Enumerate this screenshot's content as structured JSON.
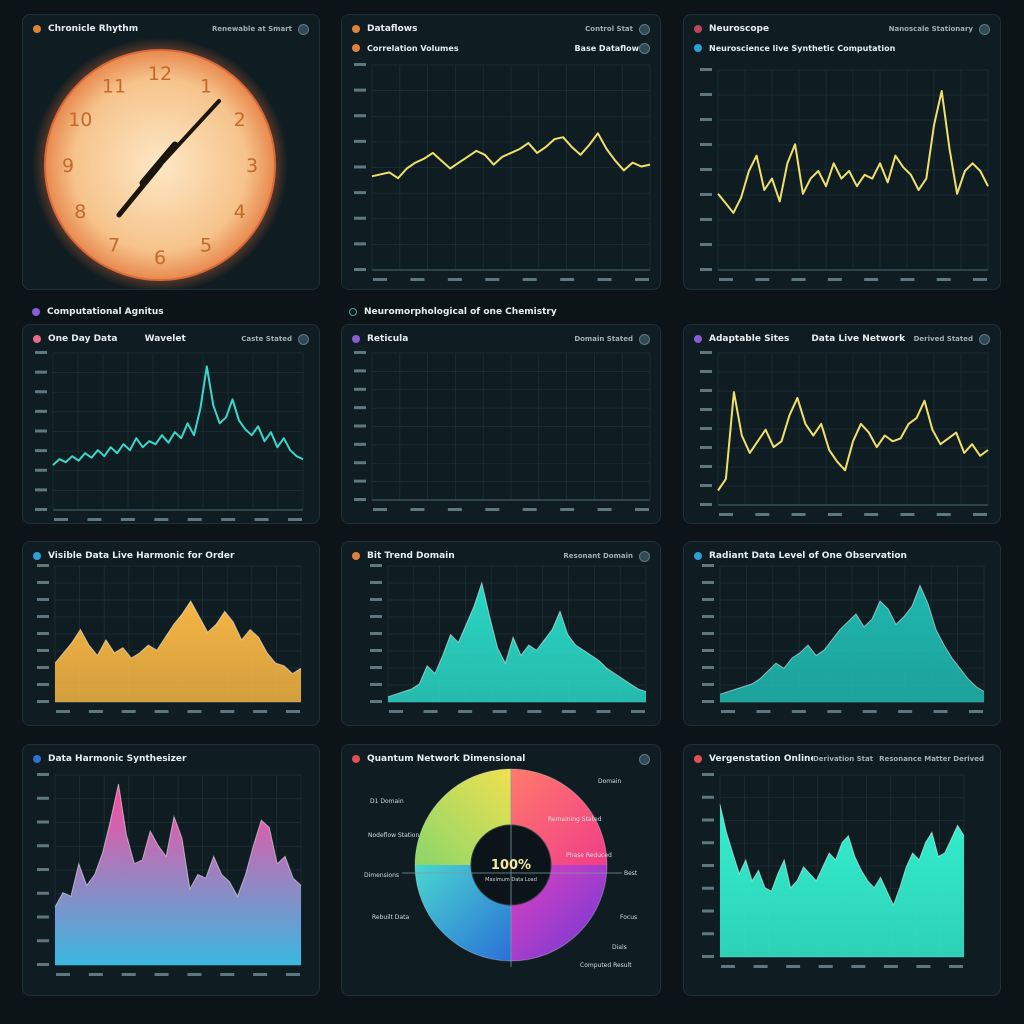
{
  "panels": {
    "clock": {
      "title": "Chronicle Rhythm",
      "meta": "Renewable at Smart",
      "dot": "#e0813a",
      "numerals": [
        "12",
        "1",
        "2",
        "3",
        "4",
        "5",
        "6",
        "7",
        "8",
        "9",
        "10",
        "11"
      ]
    },
    "analytics": {
      "title": "Dataflows",
      "meta": "Control Stat",
      "dot": "#e0813a",
      "sub_title": "Correlation Volumes",
      "sub_meta": "Base Dataflow"
    },
    "nano": {
      "title": "Neuroscope",
      "meta": "Nanoscale Stationary",
      "dot": "#c2445a",
      "sub_title": "Neuroscience live Synthetic Computation"
    },
    "wave": {
      "below_title": "Computational Agnitus",
      "sub_title": "One Day Data",
      "sub_mid": "Wavelet",
      "sub_meta": "Caste Stated"
    },
    "empty": {
      "below_title": "Neuromorphological of one Chemistry",
      "sub_title": "Reticula",
      "sub_meta": "Domain Stated"
    },
    "auto": {
      "sub_title": "Adaptable Sites",
      "sub_mid": "Data Live Network",
      "sub_meta": "Derived Stated"
    },
    "yellow_area": {
      "title": "Visible Data Live Harmonic for Order"
    },
    "teal_area": {
      "title": "Bit Trend Domain",
      "meta": "Resonant Domain"
    },
    "teal_area2": {
      "title": "Radiant Data Level of One Observation"
    },
    "pink_area": {
      "title": "Data Harmonic Synthesizer"
    },
    "donut": {
      "title": "Quantum Network Dimensional",
      "center_value": "100%",
      "center_sub": "Maximum Data Load",
      "labels_left": [
        "D1 Domain",
        "Nodeflow Station",
        "Dimensions",
        "Rebuilt Data"
      ],
      "labels_right": [
        "Domain",
        "Remaining Stated",
        "Phase Reduced",
        "Best",
        "Focus",
        "Dials",
        "Computed Result"
      ]
    },
    "gradient": {
      "title": "Vergenstation Online",
      "meta": "Derivation Stat",
      "meta2": "Resonance Matter Derived"
    }
  },
  "chart_data": [
    {
      "type": "line",
      "title": "Correlation Volumes",
      "color": "#f0e06a",
      "values": [
        48,
        49,
        50,
        47,
        52,
        55,
        57,
        60,
        56,
        52,
        55,
        58,
        61,
        59,
        54,
        58,
        60,
        62,
        65,
        60,
        63,
        67,
        68,
        63,
        59,
        64,
        70,
        62,
        56,
        51,
        55,
        53,
        54
      ]
    },
    {
      "type": "line",
      "title": "Neuroscience live Synthetic Computation",
      "color": "#f0e06a",
      "values": [
        40,
        35,
        30,
        38,
        52,
        60,
        42,
        48,
        36,
        56,
        66,
        40,
        48,
        52,
        44,
        56,
        48,
        52,
        44,
        50,
        48,
        56,
        46,
        60,
        54,
        50,
        42,
        48,
        76,
        94,
        64,
        40,
        52,
        56,
        52,
        44
      ]
    },
    {
      "type": "line",
      "title": "Wavelet",
      "color": "#39d8c8",
      "values": [
        30,
        34,
        32,
        36,
        33,
        38,
        35,
        40,
        36,
        42,
        38,
        44,
        40,
        48,
        42,
        46,
        44,
        50,
        45,
        52,
        48,
        58,
        50,
        68,
        96,
        70,
        58,
        62,
        74,
        60,
        54,
        50,
        56,
        46,
        52,
        42,
        48,
        40,
        36,
        34
      ]
    },
    {
      "type": "line",
      "title": "Adaptable Sites",
      "color": "#f0e06a",
      "values": [
        10,
        18,
        78,
        48,
        36,
        44,
        52,
        40,
        44,
        62,
        74,
        56,
        48,
        56,
        38,
        30,
        24,
        44,
        56,
        50,
        40,
        48,
        44,
        46,
        56,
        60,
        72,
        52,
        42,
        46,
        50,
        36,
        42,
        34,
        38
      ]
    },
    {
      "type": "area",
      "title": "Visible Data Live Harmonic for Order",
      "color": "#f5b543",
      "values": [
        30,
        38,
        46,
        56,
        44,
        36,
        48,
        38,
        42,
        34,
        38,
        44,
        40,
        50,
        60,
        68,
        78,
        66,
        54,
        60,
        70,
        62,
        48,
        56,
        50,
        38,
        30,
        28,
        22,
        26
      ]
    },
    {
      "type": "area",
      "title": "Bit Trend Domain",
      "color": "#2ad6c4",
      "values": [
        4,
        6,
        8,
        10,
        14,
        28,
        22,
        36,
        52,
        46,
        60,
        74,
        92,
        66,
        42,
        30,
        50,
        36,
        44,
        40,
        48,
        56,
        70,
        52,
        44,
        40,
        36,
        32,
        26,
        22,
        18,
        14,
        10,
        8
      ]
    },
    {
      "type": "area",
      "title": "Radiant Data Level of One Observation",
      "color": "#1fb8b0",
      "values": [
        6,
        8,
        10,
        12,
        14,
        18,
        24,
        30,
        26,
        34,
        38,
        44,
        36,
        40,
        48,
        56,
        62,
        68,
        58,
        64,
        78,
        72,
        60,
        66,
        74,
        90,
        76,
        56,
        44,
        34,
        26,
        18,
        12,
        8
      ]
    },
    {
      "type": "area",
      "title": "Data Harmonic Synthesizer",
      "color": "#e8509a",
      "values": [
        32,
        40,
        38,
        56,
        44,
        50,
        62,
        80,
        100,
        72,
        56,
        58,
        74,
        66,
        60,
        82,
        70,
        42,
        50,
        48,
        60,
        50,
        46,
        38,
        50,
        66,
        80,
        76,
        56,
        60,
        48,
        44
      ]
    },
    {
      "type": "area",
      "title": "Vergenstation Online",
      "color": "#33f0d0",
      "values": [
        88,
        72,
        60,
        48,
        56,
        44,
        50,
        40,
        38,
        48,
        56,
        40,
        44,
        52,
        48,
        44,
        52,
        60,
        56,
        66,
        70,
        58,
        50,
        44,
        40,
        46,
        38,
        30,
        40,
        52,
        60,
        56,
        66,
        72,
        58,
        60,
        68,
        76,
        70
      ]
    },
    {
      "type": "pie",
      "title": "Quantum Network Dimensional",
      "values": [
        25,
        25,
        25,
        25
      ]
    }
  ]
}
